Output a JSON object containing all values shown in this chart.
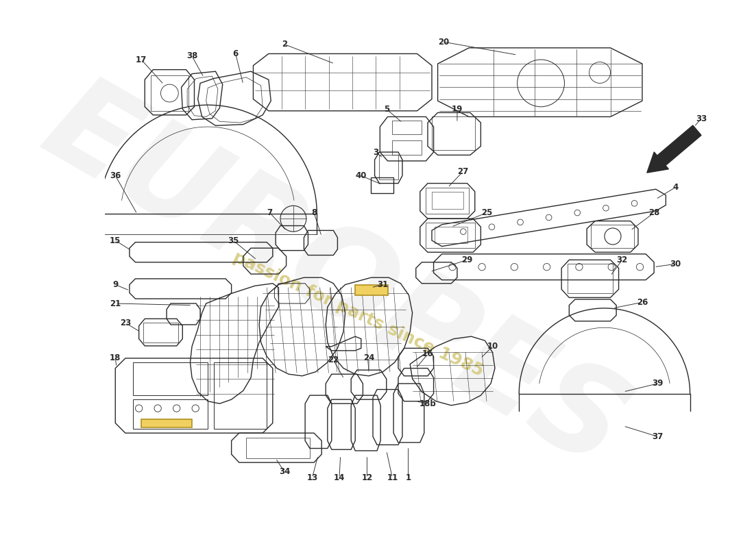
{
  "bg_color": "#ffffff",
  "line_color": "#2a2a2a",
  "lw": 1.0,
  "fig_width": 11.0,
  "fig_height": 8.0,
  "watermark_text": "passion for parts since 1985",
  "watermark_color": "#d4c87a",
  "watermark2_text": "EUROPES",
  "watermark2_color": "#bbbbbb"
}
